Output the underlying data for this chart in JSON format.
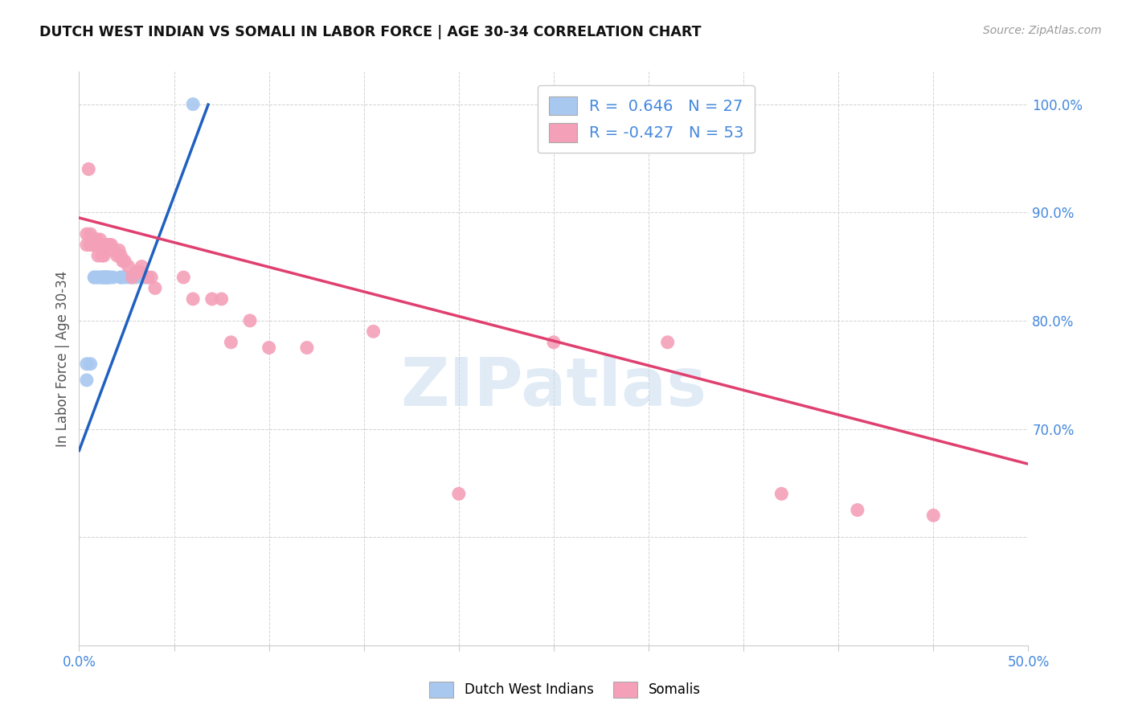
{
  "title": "DUTCH WEST INDIAN VS SOMALI IN LABOR FORCE | AGE 30-34 CORRELATION CHART",
  "source": "Source: ZipAtlas.com",
  "ylabel": "In Labor Force | Age 30-34",
  "xlim": [
    0.0,
    0.5
  ],
  "ylim": [
    0.5,
    1.03
  ],
  "xticks": [
    0.0,
    0.05,
    0.1,
    0.15,
    0.2,
    0.25,
    0.3,
    0.35,
    0.4,
    0.45,
    0.5
  ],
  "yticks": [
    0.5,
    0.6,
    0.7,
    0.8,
    0.9,
    1.0
  ],
  "watermark": "ZIPatlas",
  "legend_R_blue": "0.646",
  "legend_N_blue": "27",
  "legend_R_pink": "-0.427",
  "legend_N_pink": "53",
  "blue_color": "#A8C8F0",
  "pink_color": "#F4A0B8",
  "blue_line_color": "#2060C0",
  "pink_line_color": "#E04070",
  "dutch_west_indian_x": [
    0.004,
    0.004,
    0.006,
    0.008,
    0.008,
    0.01,
    0.01,
    0.012,
    0.012,
    0.013,
    0.013,
    0.014,
    0.014,
    0.015,
    0.015,
    0.016,
    0.016,
    0.018,
    0.022,
    0.022,
    0.024,
    0.026,
    0.028,
    0.03,
    0.034,
    0.036,
    0.06
  ],
  "dutch_west_indian_y": [
    0.76,
    0.745,
    0.76,
    0.84,
    0.84,
    0.84,
    0.84,
    0.84,
    0.84,
    0.84,
    0.84,
    0.84,
    0.84,
    0.84,
    0.84,
    0.84,
    0.84,
    0.84,
    0.84,
    0.84,
    0.84,
    0.84,
    0.84,
    0.84,
    0.84,
    0.84,
    1.0
  ],
  "somali_x": [
    0.004,
    0.004,
    0.005,
    0.006,
    0.006,
    0.007,
    0.007,
    0.008,
    0.008,
    0.009,
    0.009,
    0.01,
    0.01,
    0.011,
    0.011,
    0.012,
    0.012,
    0.013,
    0.013,
    0.014,
    0.015,
    0.015,
    0.016,
    0.017,
    0.018,
    0.02,
    0.021,
    0.022,
    0.023,
    0.024,
    0.026,
    0.028,
    0.03,
    0.032,
    0.033,
    0.036,
    0.038,
    0.04,
    0.055,
    0.06,
    0.07,
    0.075,
    0.08,
    0.09,
    0.1,
    0.12,
    0.155,
    0.2,
    0.25,
    0.31,
    0.37,
    0.41,
    0.45
  ],
  "somali_y": [
    0.88,
    0.87,
    0.94,
    0.87,
    0.88,
    0.87,
    0.87,
    0.87,
    0.87,
    0.875,
    0.875,
    0.86,
    0.87,
    0.87,
    0.875,
    0.86,
    0.87,
    0.86,
    0.87,
    0.87,
    0.87,
    0.87,
    0.87,
    0.87,
    0.865,
    0.86,
    0.865,
    0.86,
    0.855,
    0.855,
    0.85,
    0.84,
    0.845,
    0.845,
    0.85,
    0.84,
    0.84,
    0.83,
    0.84,
    0.82,
    0.82,
    0.82,
    0.78,
    0.8,
    0.775,
    0.775,
    0.79,
    0.64,
    0.78,
    0.78,
    0.64,
    0.625,
    0.62
  ],
  "blue_line_x": [
    0.0,
    0.068
  ],
  "blue_line_y_intercept": 0.68,
  "blue_line_slope": 4.7,
  "pink_line_x": [
    0.0,
    0.5
  ],
  "pink_line_y_intercept": 0.895,
  "pink_line_slope": -0.455
}
